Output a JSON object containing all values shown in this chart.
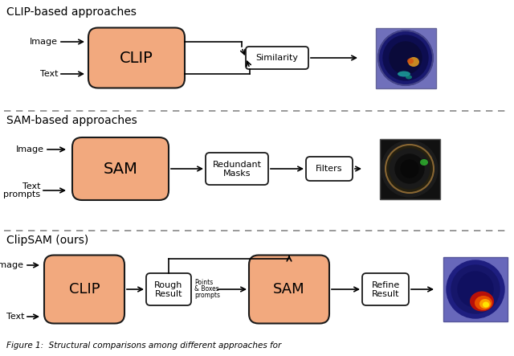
{
  "background_color": "#ffffff",
  "section1_title": "CLIP-based approaches",
  "section2_title": "SAM-based approaches",
  "section3_title": "ClipSAM (ours)",
  "box_fill_color": "#F2A97E",
  "box_edge_color": "#1a1a1a",
  "small_box_fill": "#ffffff",
  "small_box_edge": "#1a1a1a",
  "arrow_color": "#111111",
  "dashed_line_color": "#888888",
  "fig_caption": "Figure 1:  Structural comparisons among different approaches for"
}
